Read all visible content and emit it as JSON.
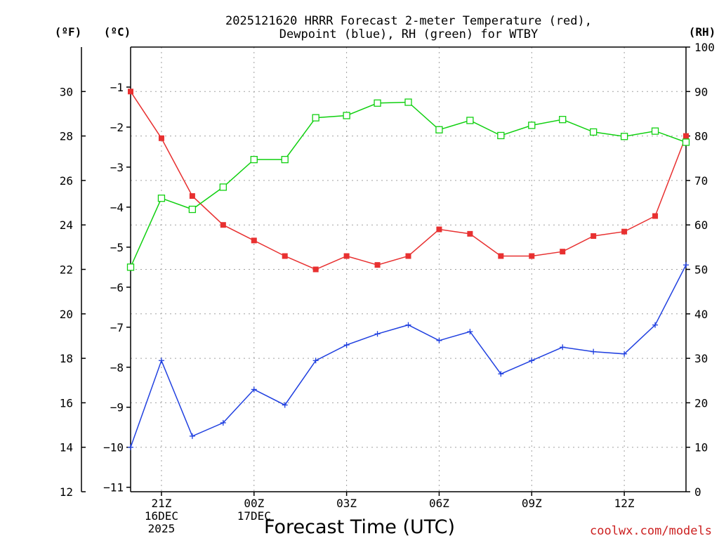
{
  "chart_data": {
    "type": "line",
    "title": "2025121620 HRRR Forecast 2-meter Temperature (red),",
    "subtitle": "Dewpoint (blue), RH (green) for WTBY",
    "xlabel": "Forecast Time (UTC)",
    "credit": "coolwx.com/models",
    "units": {
      "fahrenheit": "(ºF)",
      "celsius": "(ºC)",
      "rh": "(RH)"
    },
    "x": [
      "20Z",
      "21Z",
      "22Z",
      "23Z",
      "00Z",
      "01Z",
      "02Z",
      "03Z",
      "04Z",
      "05Z",
      "06Z",
      "07Z",
      "08Z",
      "09Z",
      "10Z",
      "11Z",
      "12Z",
      "13Z",
      "14Z"
    ],
    "x_tick_labels": [
      {
        "index": 1,
        "lines": [
          "21Z",
          "16DEC",
          "2025"
        ]
      },
      {
        "index": 4,
        "lines": [
          "00Z",
          "17DEC"
        ]
      },
      {
        "index": 7,
        "lines": [
          "03Z"
        ]
      },
      {
        "index": 10,
        "lines": [
          "06Z"
        ]
      },
      {
        "index": 13,
        "lines": [
          "09Z"
        ]
      },
      {
        "index": 16,
        "lines": [
          "12Z"
        ]
      }
    ],
    "y_left_f": {
      "range": [
        12,
        32
      ],
      "ticks": [
        "12",
        "14",
        "16",
        "18",
        "20",
        "22",
        "24",
        "26",
        "28",
        "30"
      ]
    },
    "y_left_c": {
      "range": [
        -11.11,
        0
      ],
      "ticks": [
        "−1",
        "−2",
        "−3",
        "−4",
        "−5",
        "−6",
        "−7",
        "−8",
        "−9",
        "−10",
        "−11"
      ]
    },
    "y_right_rh": {
      "range": [
        0,
        100
      ],
      "ticks": [
        "0",
        "10",
        "20",
        "30",
        "40",
        "50",
        "60",
        "70",
        "80",
        "90",
        "100"
      ]
    },
    "grid": true,
    "series": [
      {
        "name": "Temperature",
        "axis": "f",
        "color": "#e83030",
        "marker": "filled-square",
        "values": [
          30.0,
          27.9,
          25.3,
          24.0,
          23.3,
          22.6,
          22.0,
          22.6,
          22.2,
          22.6,
          23.8,
          23.6,
          22.6,
          22.6,
          22.8,
          23.5,
          23.7,
          24.4,
          28.0
        ]
      },
      {
        "name": "Dewpoint",
        "axis": "f",
        "color": "#2040e0",
        "marker": "plus",
        "values": [
          14.0,
          17.9,
          14.5,
          15.1,
          16.6,
          15.9,
          17.9,
          18.6,
          19.1,
          19.5,
          18.8,
          19.2,
          17.3,
          17.9,
          18.5,
          18.3,
          18.2,
          19.5,
          22.2
        ]
      },
      {
        "name": "RH",
        "axis": "rh",
        "color": "#10d010",
        "marker": "open-square",
        "values": [
          50.5,
          66.0,
          63.5,
          68.5,
          74.7,
          74.7,
          84.1,
          84.6,
          87.4,
          87.6,
          81.4,
          83.5,
          80.1,
          82.4,
          83.7,
          80.9,
          79.9,
          81.1,
          78.6
        ]
      }
    ]
  }
}
